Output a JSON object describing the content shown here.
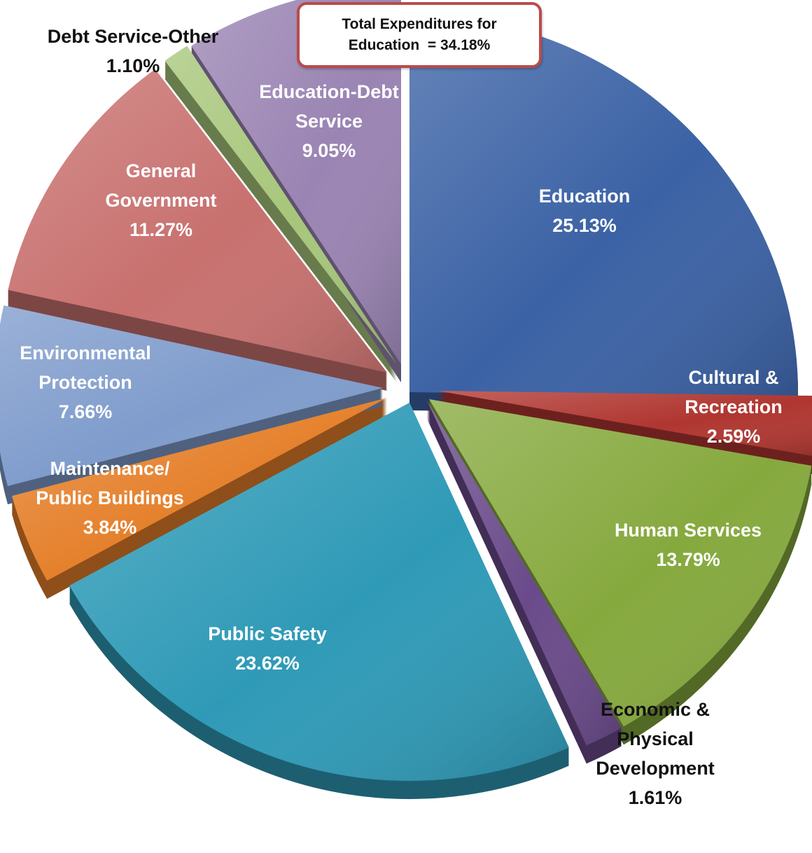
{
  "chart_data": {
    "type": "pie",
    "title": "",
    "slices": [
      {
        "key": "education",
        "lines": [
          "Education",
          "25.13%"
        ],
        "label": "Education",
        "value": 25.13,
        "color": "#3b62a5"
      },
      {
        "key": "cultural-recreation",
        "lines": [
          "Cultural &",
          "Recreation",
          "2.59%"
        ],
        "label": "Cultural & Recreation",
        "value": 2.59,
        "color": "#b03630"
      },
      {
        "key": "human-services",
        "lines": [
          "Human Services",
          "13.79%"
        ],
        "label": "Human Services",
        "value": 13.79,
        "color": "#86a93e"
      },
      {
        "key": "economic-physical-development",
        "lines": [
          "Economic &",
          "Physical",
          "Development",
          "1.61%"
        ],
        "label": "Economic & Physical Development",
        "value": 1.61,
        "color": "#6a4a8a"
      },
      {
        "key": "public-safety",
        "lines": [
          "Public Safety",
          "23.62%"
        ],
        "label": "Public Safety",
        "value": 23.62,
        "color": "#2f9ab7"
      },
      {
        "key": "maintenance-public-buildings",
        "lines": [
          "Maintenance/",
          "Public Buildings",
          "3.84%"
        ],
        "label": "Maintenance/ Public Buildings",
        "value": 3.84,
        "color": "#e5802b"
      },
      {
        "key": "environmental-protection",
        "lines": [
          "Environmental",
          "Protection",
          "7.66%"
        ],
        "label": "Environmental Protection",
        "value": 7.66,
        "color": "#7f9ccc"
      },
      {
        "key": "general-government",
        "lines": [
          "General",
          "Government",
          "11.27%"
        ],
        "label": "General Government",
        "value": 11.27,
        "color": "#c8716f"
      },
      {
        "key": "debt-service-other",
        "lines": [
          "Debt Service-Other",
          "1.10%"
        ],
        "label": "Debt Service-Other",
        "value": 1.1,
        "color": "#a7c67a"
      },
      {
        "key": "education-debt-service",
        "lines": [
          "Education-Debt",
          "Service",
          "9.05%"
        ],
        "label": "Education-Debt Service",
        "value": 9.05,
        "color": "#9a84b3"
      }
    ],
    "annotation": {
      "lines": [
        "Total Expenditures for",
        "Education  = 34.18%"
      ]
    }
  }
}
